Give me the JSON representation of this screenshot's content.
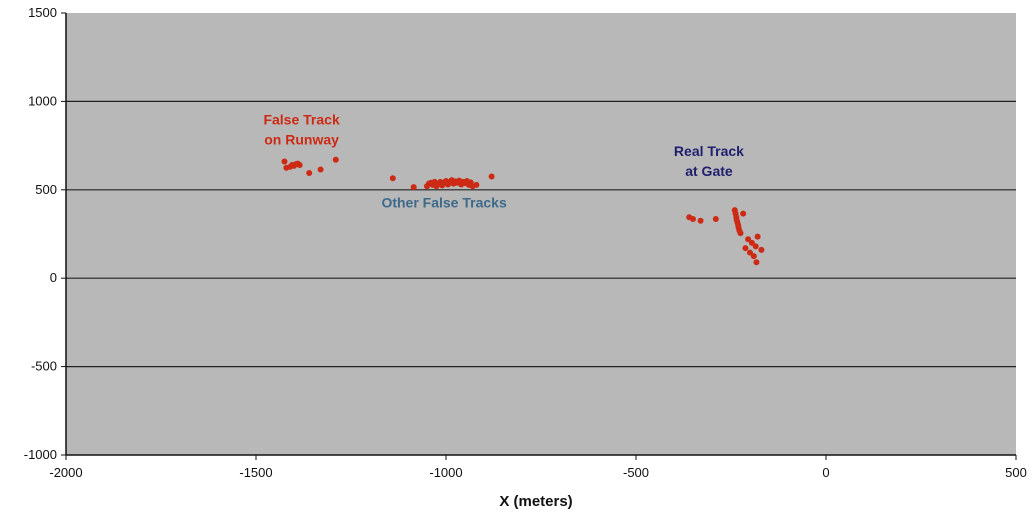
{
  "chart_data": {
    "type": "scatter",
    "xlabel": "X (meters)",
    "ylabel": "",
    "xlim": [
      -2000,
      500
    ],
    "ylim": [
      -1000,
      1500
    ],
    "x_ticks": [
      -2000,
      -1500,
      -1000,
      -500,
      0,
      500
    ],
    "y_ticks": [
      -1000,
      -500,
      0,
      500,
      1000,
      1500
    ],
    "grid": "horizontal",
    "legend": "none",
    "colors": {
      "plot_background": "#b8b8b8",
      "gridline": "#222222",
      "points": "#cc2a14",
      "annotation_false": "#cc2a14",
      "annotation_other": "#3d6a8a",
      "annotation_real": "#1f1f6e"
    },
    "annotations": [
      {
        "lines": [
          "False Track",
          "on Runway"
        ],
        "x": -1380,
        "y": 870,
        "color_key": "annotation_false"
      },
      {
        "lines": [
          "Other False Tracks"
        ],
        "x": -1005,
        "y": 400,
        "color_key": "annotation_other"
      },
      {
        "lines": [
          "Real Track",
          "at Gate"
        ],
        "x": -308,
        "y": 690,
        "color_key": "annotation_real"
      }
    ],
    "series": [
      {
        "points": [
          [
            -1420,
            625
          ],
          [
            -1410,
            630
          ],
          [
            -1405,
            640
          ],
          [
            -1400,
            635
          ],
          [
            -1395,
            645
          ],
          [
            -1390,
            648
          ],
          [
            -1385,
            640
          ],
          [
            -1425,
            660
          ],
          [
            -1360,
            595
          ],
          [
            -1330,
            615
          ],
          [
            -1290,
            670
          ],
          [
            -1140,
            565
          ],
          [
            -1085,
            515
          ],
          [
            -1050,
            520
          ],
          [
            -1045,
            535
          ],
          [
            -1040,
            540
          ],
          [
            -1035,
            528
          ],
          [
            -1030,
            545
          ],
          [
            -1025,
            520
          ],
          [
            -1020,
            535
          ],
          [
            -1015,
            545
          ],
          [
            -1010,
            525
          ],
          [
            -1005,
            540
          ],
          [
            -1000,
            550
          ],
          [
            -995,
            530
          ],
          [
            -990,
            545
          ],
          [
            -985,
            555
          ],
          [
            -980,
            535
          ],
          [
            -975,
            548
          ],
          [
            -970,
            540
          ],
          [
            -965,
            552
          ],
          [
            -960,
            530
          ],
          [
            -955,
            545
          ],
          [
            -950,
            538
          ],
          [
            -945,
            550
          ],
          [
            -940,
            528
          ],
          [
            -935,
            542
          ],
          [
            -930,
            520
          ],
          [
            -920,
            528
          ],
          [
            -880,
            575
          ],
          [
            -360,
            345
          ],
          [
            -350,
            335
          ],
          [
            -330,
            325
          ],
          [
            -290,
            335
          ],
          [
            -240,
            385
          ],
          [
            -238,
            365
          ],
          [
            -236,
            345
          ],
          [
            -235,
            330
          ],
          [
            -233,
            315
          ],
          [
            -231,
            300
          ],
          [
            -230,
            285
          ],
          [
            -228,
            270
          ],
          [
            -225,
            255
          ],
          [
            -218,
            365
          ],
          [
            -212,
            170
          ],
          [
            -205,
            220
          ],
          [
            -200,
            145
          ],
          [
            -195,
            200
          ],
          [
            -190,
            125
          ],
          [
            -185,
            180
          ],
          [
            -183,
            90
          ],
          [
            -180,
            235
          ],
          [
            -170,
            160
          ]
        ]
      }
    ]
  }
}
